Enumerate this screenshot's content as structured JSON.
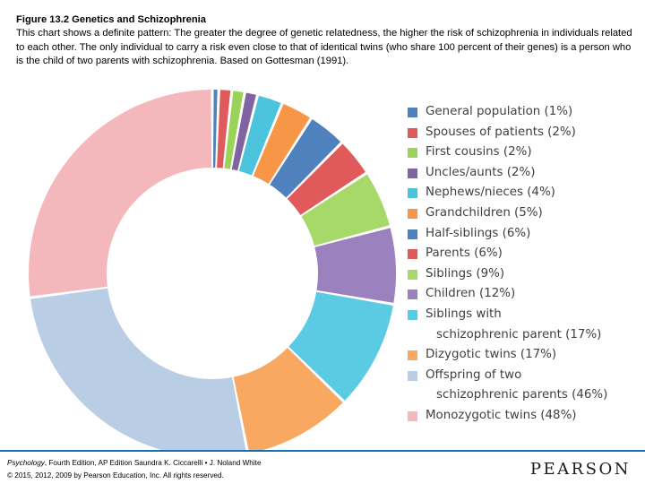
{
  "caption": {
    "title": "Figure 13.2   Genetics and Schizophrenia",
    "body": "This chart shows a definite pattern: The greater the degree of genetic relatedness, the higher the risk of schizophrenia in individuals related to each other. The only individual to carry a risk even close to that of identical twins (who share 100 percent of their genes) is a person who is the child of two parents with schizophrenia. Based on Gottesman (1991)."
  },
  "chart_data": {
    "type": "pie",
    "variant": "exploded donut",
    "unit": "%",
    "legend_position": "right",
    "slices": [
      {
        "label": "General population (1%)",
        "value": 1,
        "color": "#4f81bd"
      },
      {
        "label": "Spouses of patients (2%)",
        "value": 2,
        "color": "#e0595b"
      },
      {
        "label": "First cousins (2%)",
        "value": 2,
        "color": "#9bd35a"
      },
      {
        "label": "Uncles/aunts (2%)",
        "value": 2,
        "color": "#8064a2"
      },
      {
        "label": "Nephews/nieces (4%)",
        "value": 4,
        "color": "#4bc3dc"
      },
      {
        "label": "Grandchildren (5%)",
        "value": 5,
        "color": "#f79646"
      },
      {
        "label": "Half-siblings (6%)",
        "value": 6,
        "color": "#4f81bd"
      },
      {
        "label": "Parents (6%)",
        "value": 6,
        "color": "#e0595b"
      },
      {
        "label": "Siblings (9%)",
        "value": 9,
        "color": "#a6d86a"
      },
      {
        "label": "Children (12%)",
        "value": 12,
        "color": "#9b82bf"
      },
      {
        "label": "Siblings with\nschizophrenic parent (17%)",
        "value": 17,
        "color": "#5bcbe3"
      },
      {
        "label": "Dizygotic twins (17%)",
        "value": 17,
        "color": "#f9a862"
      },
      {
        "label": "Offspring of two\nschizophrenic parents (46%)",
        "value": 46,
        "color": "#b9cde5"
      },
      {
        "label": "Monozygotic twins (48%)",
        "value": 48,
        "color": "#f4b8bc"
      }
    ]
  },
  "footer": {
    "book_title": "Psychology",
    "book_rest": ", Fourth Edition, AP Edition Saundra K. Ciccarelli • J. Noland White",
    "copyright": "© 2015, 2012, 2009 by Pearson Education, Inc. All rights reserved.",
    "brand": "PEARSON"
  }
}
